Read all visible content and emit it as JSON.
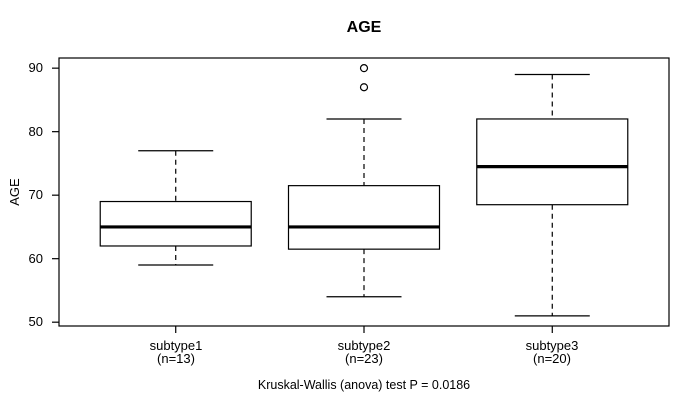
{
  "chart_data": {
    "type": "boxplot",
    "title": "AGE",
    "ylabel": "AGE",
    "xlabel": "",
    "caption": "Kruskal-Wallis (anova) test P = 0.0186",
    "yticks": [
      50,
      60,
      70,
      80,
      90
    ],
    "ylim": [
      49.4,
      91.6
    ],
    "grid": false,
    "legend": null,
    "groups": [
      {
        "label": "subtype1",
        "sublabel": "(n=13)",
        "n": 13,
        "whisker_low": 59,
        "q1": 62,
        "median": 65,
        "q3": 69,
        "whisker_high": 77,
        "outliers": []
      },
      {
        "label": "subtype2",
        "sublabel": "(n=23)",
        "n": 23,
        "whisker_low": 54,
        "q1": 61.5,
        "median": 65,
        "q3": 71.5,
        "whisker_high": 82,
        "outliers": [
          87,
          90
        ]
      },
      {
        "label": "subtype3",
        "sublabel": "(n=20)",
        "n": 20,
        "whisker_low": 51,
        "q1": 68.5,
        "median": 74.5,
        "q3": 82,
        "whisker_high": 89,
        "outliers": []
      }
    ],
    "colors": {
      "line": "#000000",
      "median": "#000000",
      "box_fill": "#ffffff",
      "background": "#ffffff"
    }
  }
}
